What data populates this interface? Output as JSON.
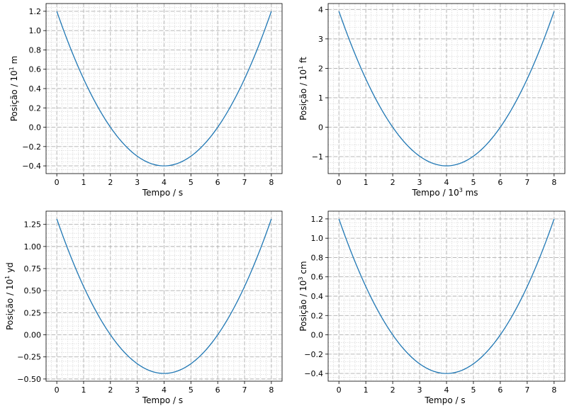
{
  "chart_data": [
    {
      "type": "line",
      "series": [
        {
          "name": "position",
          "color": "#1f77b4",
          "x_start": 0,
          "x_end": 8,
          "vertex_x": 4,
          "vertex_y": -0.4,
          "end_y": 1.2
        }
      ],
      "xlabel": {
        "text": "Tempo /  s"
      },
      "ylabel": {
        "text": "Posição / 10",
        "sup": "1",
        "unit": " m"
      },
      "xlim": [
        -0.4,
        8.4
      ],
      "ylim": [
        -0.48,
        1.28
      ],
      "x_ticks": [
        0,
        1,
        2,
        3,
        4,
        5,
        6,
        7,
        8
      ],
      "x_tick_labels": [
        "0",
        "1",
        "2",
        "3",
        "4",
        "5",
        "6",
        "7",
        "8"
      ],
      "y_ticks": [
        -0.4,
        -0.2,
        0,
        0.2,
        0.4,
        0.6,
        0.8,
        1.0,
        1.2
      ],
      "y_tick_labels": [
        "−0.4",
        "−0.2",
        "0.0",
        "0.2",
        "0.4",
        "0.6",
        "0.8",
        "1.0",
        "1.2"
      ],
      "grid": true
    },
    {
      "type": "line",
      "series": [
        {
          "name": "position",
          "color": "#1f77b4",
          "x_start": 0,
          "x_end": 8,
          "vertex_x": 4,
          "vertex_y": -1.312,
          "end_y": 3.937
        }
      ],
      "xlabel": {
        "text": "Tempo / 10",
        "sup": "3",
        "unit": " ms"
      },
      "ylabel": {
        "text": "Posição / 10",
        "sup": "1",
        "unit": " ft"
      },
      "xlim": [
        -0.4,
        8.4
      ],
      "ylim": [
        -1.575,
        4.2
      ],
      "x_ticks": [
        0,
        1,
        2,
        3,
        4,
        5,
        6,
        7,
        8
      ],
      "x_tick_labels": [
        "0",
        "1",
        "2",
        "3",
        "4",
        "5",
        "6",
        "7",
        "8"
      ],
      "y_ticks": [
        -1,
        0,
        1,
        2,
        3,
        4
      ],
      "y_tick_labels": [
        "−1",
        "0",
        "1",
        "2",
        "3",
        "4"
      ],
      "grid": true
    },
    {
      "type": "line",
      "series": [
        {
          "name": "position",
          "color": "#1f77b4",
          "x_start": 0,
          "x_end": 8,
          "vertex_x": 4,
          "vertex_y": -0.437,
          "end_y": 1.312
        }
      ],
      "xlabel": {
        "text": "Tempo /  s"
      },
      "ylabel": {
        "text": "Posição / 10",
        "sup": "1",
        "unit": " yd"
      },
      "xlim": [
        -0.4,
        8.4
      ],
      "ylim": [
        -0.525,
        1.4
      ],
      "x_ticks": [
        0,
        1,
        2,
        3,
        4,
        5,
        6,
        7,
        8
      ],
      "x_tick_labels": [
        "0",
        "1",
        "2",
        "3",
        "4",
        "5",
        "6",
        "7",
        "8"
      ],
      "y_ticks": [
        -0.5,
        -0.25,
        0,
        0.25,
        0.5,
        0.75,
        1.0,
        1.25
      ],
      "y_tick_labels": [
        "−0.50",
        "−0.25",
        "0.00",
        "0.25",
        "0.50",
        "0.75",
        "1.00",
        "1.25"
      ],
      "grid": true
    },
    {
      "type": "line",
      "series": [
        {
          "name": "position",
          "color": "#1f77b4",
          "x_start": 0,
          "x_end": 8,
          "vertex_x": 4,
          "vertex_y": -0.4,
          "end_y": 1.2
        }
      ],
      "xlabel": {
        "text": "Tempo /  s"
      },
      "ylabel": {
        "text": "Posição / 10",
        "sup": "3",
        "unit": " cm"
      },
      "xlim": [
        -0.4,
        8.4
      ],
      "ylim": [
        -0.48,
        1.28
      ],
      "x_ticks": [
        0,
        1,
        2,
        3,
        4,
        5,
        6,
        7,
        8
      ],
      "x_tick_labels": [
        "0",
        "1",
        "2",
        "3",
        "4",
        "5",
        "6",
        "7",
        "8"
      ],
      "y_ticks": [
        -0.4,
        -0.2,
        0,
        0.2,
        0.4,
        0.6,
        0.8,
        1.0,
        1.2
      ],
      "y_tick_labels": [
        "−0.4",
        "−0.2",
        "0.0",
        "0.2",
        "0.4",
        "0.6",
        "0.8",
        "1.0",
        "1.2"
      ],
      "grid": true
    }
  ]
}
